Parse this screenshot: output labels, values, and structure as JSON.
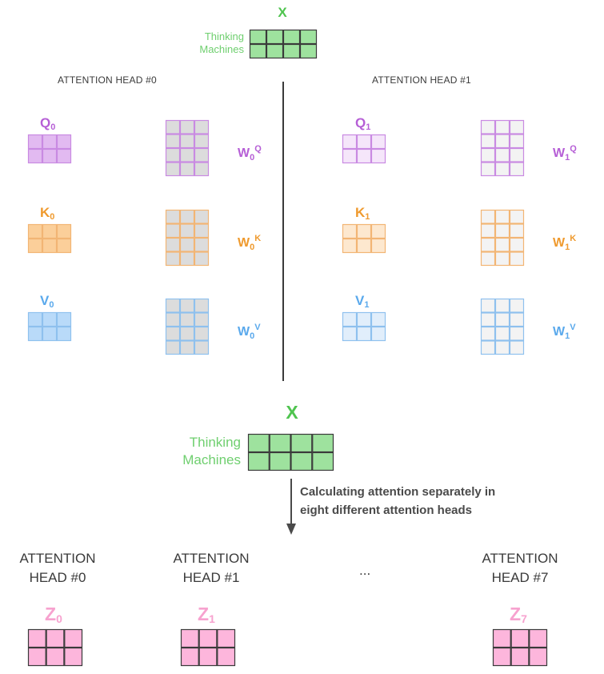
{
  "top_input": {
    "label": "X",
    "words": [
      "Thinking",
      "Machines"
    ],
    "color": "#9ee29e",
    "border": "#3a3a3a"
  },
  "heads": [
    {
      "title": "ATTENTION HEAD #0",
      "q_label": "Q",
      "q_sub": "0",
      "k_label": "K",
      "k_sub": "0",
      "v_label": "V",
      "v_sub": "0",
      "wq_label": "W",
      "wq_sub": "0",
      "wq_sup": "Q",
      "wk_label": "W",
      "wk_sub": "0",
      "wk_sup": "K",
      "wv_label": "W",
      "wv_sub": "0",
      "wv_sup": "V"
    },
    {
      "title": "ATTENTION HEAD #1",
      "q_label": "Q",
      "q_sub": "1",
      "k_label": "K",
      "k_sub": "1",
      "v_label": "V",
      "v_sub": "1",
      "wq_label": "W",
      "wq_sub": "1",
      "wq_sup": "Q",
      "wk_label": "W",
      "wk_sub": "1",
      "wk_sup": "K",
      "wv_label": "W",
      "wv_sub": "1",
      "wv_sup": "V"
    }
  ],
  "middle_input": {
    "label": "X",
    "words": [
      "Thinking",
      "Machines"
    ]
  },
  "arrow_note": [
    "Calculating attention separately in",
    "eight different attention heads"
  ],
  "bottom_heads": [
    {
      "line1": "ATTENTION",
      "line2": "HEAD #0",
      "z_label": "Z",
      "z_sub": "0"
    },
    {
      "line1": "ATTENTION",
      "line2": "HEAD #1",
      "z_label": "Z",
      "z_sub": "1"
    },
    {
      "line1": "ATTENTION",
      "line2": "HEAD #7",
      "z_label": "Z",
      "z_sub": "7"
    }
  ],
  "ellipsis": "...",
  "colors": {
    "green": "#9ee29e",
    "q_dark": "#e2baf1",
    "q_light": "#f5e6fa",
    "q_text": "#b65fd6",
    "q_border": "#c98ae2",
    "k_dark": "#fbcf9a",
    "k_light": "#fde8cf",
    "k_text": "#ef9a2e",
    "k_border": "#f2b574",
    "v_dark": "#b9daf9",
    "v_light": "#e1eefb",
    "v_text": "#5aa9ec",
    "v_border": "#8fc1ee",
    "w_gray": "#dcdcdc",
    "w_light": "#f3f3f3",
    "z_pink": "#fdb6dc",
    "z_text": "#f7a2cf"
  }
}
